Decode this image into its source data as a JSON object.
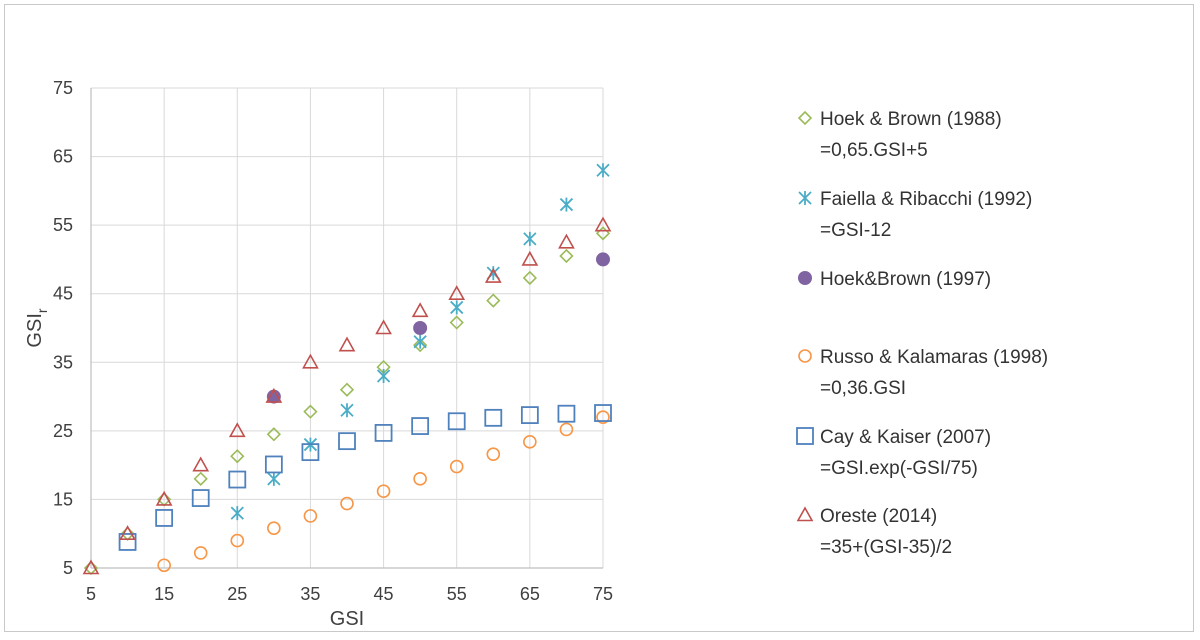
{
  "chart_data": {
    "type": "scatter",
    "title": "",
    "xlabel": "GSI",
    "ylabel": "GSI",
    "ylabel_sub": "r",
    "xlim": [
      5,
      75
    ],
    "ylim": [
      5,
      75
    ],
    "x_ticks": [
      5,
      15,
      25,
      35,
      45,
      55,
      65,
      75
    ],
    "y_ticks": [
      5,
      15,
      25,
      35,
      45,
      55,
      65,
      75
    ],
    "grid": true,
    "legend_position": "right",
    "series": [
      {
        "name": "Hoek & Brown (1988)",
        "formula": "=0,65.GSI+5",
        "marker": "diamond",
        "color": "#9bbb59",
        "x": [
          5,
          10,
          15,
          20,
          25,
          30,
          35,
          40,
          45,
          50,
          55,
          60,
          65,
          70,
          75
        ],
        "y": [
          5,
          10,
          15,
          18,
          21.3,
          24.5,
          27.8,
          31,
          34.3,
          37.5,
          40.8,
          44,
          47.3,
          50.5,
          53.8
        ]
      },
      {
        "name": "Faiella & Ribacchi (1992)",
        "formula": "=GSI-12",
        "marker": "asterisk",
        "color": "#4bacc6",
        "x": [
          25,
          30,
          35,
          40,
          45,
          50,
          55,
          60,
          65,
          70,
          75
        ],
        "y": [
          13,
          18,
          23,
          28,
          33,
          38,
          43,
          48,
          53,
          58,
          63
        ]
      },
      {
        "name": "Hoek&Brown (1997)",
        "formula": "",
        "marker": "filled-circle",
        "color": "#8064a2",
        "x": [
          30,
          50,
          75
        ],
        "y": [
          30,
          40,
          50
        ]
      },
      {
        "name": "Russo & Kalamaras (1998)",
        "formula": "=0,36.GSI",
        "marker": "circle",
        "color": "#f79646",
        "x": [
          15,
          20,
          25,
          30,
          35,
          40,
          45,
          50,
          55,
          60,
          65,
          70,
          75
        ],
        "y": [
          5.4,
          7.2,
          9,
          10.8,
          12.6,
          14.4,
          16.2,
          18,
          19.8,
          21.6,
          23.4,
          25.2,
          27
        ]
      },
      {
        "name": "Cay & Kaiser (2007)",
        "formula": "=GSI.exp(-GSI/75)",
        "marker": "square",
        "color": "#4f81bd",
        "x": [
          10,
          15,
          20,
          25,
          30,
          35,
          40,
          45,
          50,
          55,
          60,
          65,
          70,
          75
        ],
        "y": [
          8.8,
          12.3,
          15.2,
          17.9,
          20.1,
          21.9,
          23.5,
          24.7,
          25.7,
          26.4,
          26.9,
          27.3,
          27.5,
          27.6
        ]
      },
      {
        "name": "Oreste (2014)",
        "formula": "=35+(GSI-35)/2",
        "marker": "triangle",
        "color": "#c0504d",
        "x": [
          5,
          10,
          15,
          20,
          25,
          30,
          35,
          40,
          45,
          50,
          55,
          60,
          65,
          70,
          75
        ],
        "y": [
          5,
          10,
          15,
          20,
          25,
          30,
          35,
          37.5,
          40,
          42.5,
          45,
          47.5,
          50,
          52.5,
          55
        ]
      }
    ]
  }
}
